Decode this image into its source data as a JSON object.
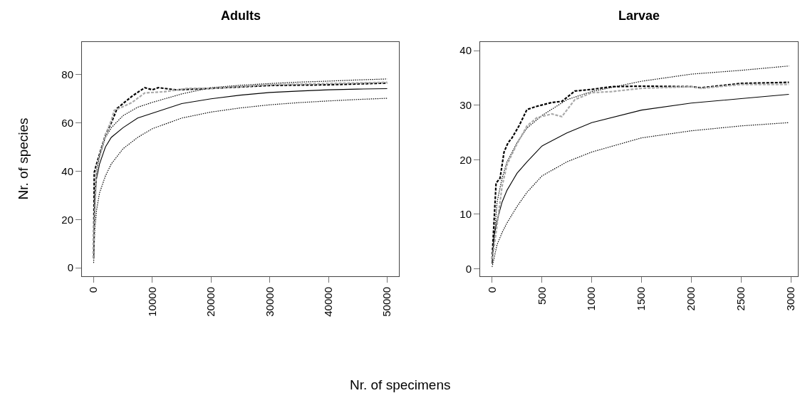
{
  "chart_data": [
    {
      "type": "line",
      "title": "Adults",
      "ylabel": "Nr. of species",
      "xlim": [
        -2000,
        52000
      ],
      "xticks": [
        0,
        10000,
        20000,
        30000,
        40000,
        50000
      ],
      "ylim": [
        -3.5,
        93.5
      ],
      "yticks": [
        0,
        20,
        40,
        60,
        80
      ],
      "marker": "none",
      "series": [
        {
          "color": "#000000",
          "line_style": "solid",
          "x": [
            0,
            200,
            500,
            1000,
            2000,
            3000,
            5000,
            7500,
            10000,
            15000,
            20000,
            25000,
            30000,
            35000,
            40000,
            45000,
            50000
          ],
          "values": [
            4,
            28,
            37,
            43,
            50,
            54,
            58,
            62,
            64,
            68,
            70,
            71.5,
            72.6,
            73.2,
            73.7,
            74,
            74.2
          ]
        },
        {
          "color": "#000000",
          "line_style": "dotted",
          "x": [
            0,
            200,
            500,
            1000,
            2000,
            3000,
            5000,
            7500,
            10000,
            15000,
            20000,
            25000,
            30000,
            35000,
            40000,
            45000,
            50000
          ],
          "values": [
            6,
            32,
            40,
            46,
            54,
            58,
            63,
            66.5,
            68.5,
            72,
            74.6,
            75.6,
            76.3,
            76.9,
            77.3,
            77.8,
            78.2
          ]
        },
        {
          "color": "#000000",
          "line_style": "dotted",
          "x": [
            0,
            200,
            500,
            1000,
            2000,
            3000,
            5000,
            7500,
            10000,
            15000,
            20000,
            25000,
            30000,
            35000,
            40000,
            45000,
            50000
          ],
          "values": [
            2,
            16,
            24,
            31,
            38,
            43,
            49.3,
            54,
            57.6,
            62,
            64.5,
            66.2,
            67.5,
            68.4,
            69.1,
            69.7,
            70.2
          ]
        },
        {
          "color": "#000000",
          "line_style": "dashed",
          "x": [
            0,
            100,
            500,
            2000,
            3000,
            4000,
            5000,
            6500,
            8700,
            10000,
            11000,
            14000,
            20000,
            30000,
            40000,
            50000
          ],
          "values": [
            4,
            39.5,
            43,
            55,
            60,
            66,
            68,
            71,
            74.6,
            73.7,
            74.6,
            73.7,
            74.3,
            75.5,
            75.8,
            76.5
          ]
        },
        {
          "color": "#a9a9a9",
          "line_style": "dashed",
          "x": [
            0,
            100,
            500,
            2000,
            3000,
            3500,
            4500,
            6500,
            8700,
            12000,
            16000,
            20000,
            30000,
            40000,
            50000
          ],
          "values": [
            4,
            17.7,
            41.3,
            55,
            61,
            65.2,
            66.2,
            68.4,
            72.4,
            72.9,
            74.3,
            74.3,
            75.8,
            76.3,
            76.8
          ]
        }
      ]
    },
    {
      "type": "line",
      "title": "Larvae",
      "xlabel": "Nr. of specimens",
      "xlim": [
        -120,
        3070
      ],
      "xticks": [
        0,
        500,
        1000,
        1500,
        2000,
        2500,
        3000
      ],
      "ylim": [
        -1.4,
        41.6
      ],
      "yticks": [
        0,
        10,
        20,
        30,
        40
      ],
      "marker": "none",
      "series": [
        {
          "color": "#000000",
          "line_style": "solid",
          "x": [
            0,
            20,
            50,
            100,
            150,
            250,
            350,
            500,
            750,
            1000,
            1500,
            2000,
            2500,
            2980
          ],
          "values": [
            1,
            6,
            8.8,
            12.2,
            14.4,
            17.5,
            19.6,
            22.5,
            24.9,
            26.8,
            29.1,
            30.4,
            31.2,
            32.0
          ]
        },
        {
          "color": "#000000",
          "line_style": "dotted",
          "x": [
            0,
            50,
            100,
            150,
            250,
            350,
            500,
            750,
            1000,
            1500,
            2000,
            2500,
            2980
          ],
          "values": [
            0.9,
            12.2,
            16.6,
            19.6,
            23.1,
            25.8,
            28.1,
            31,
            32.5,
            34.4,
            35.7,
            36.4,
            37.2
          ]
        },
        {
          "color": "#000000",
          "line_style": "dotted",
          "x": [
            0,
            50,
            100,
            150,
            250,
            350,
            500,
            750,
            1000,
            1500,
            2000,
            2500,
            2980
          ],
          "values": [
            0.3,
            4.4,
            6.6,
            8.4,
            11.4,
            14.0,
            17.0,
            19.6,
            21.4,
            24.0,
            25.3,
            26.2,
            26.8
          ]
        },
        {
          "color": "#000000",
          "line_style": "dashed",
          "x": [
            0,
            20,
            40,
            80,
            120,
            160,
            200,
            270,
            350,
            450,
            600,
            700,
            830,
            1000,
            1200,
            1500,
            2000,
            2100,
            2500,
            2980
          ],
          "values": [
            1.8,
            8.8,
            15.7,
            16.6,
            21.4,
            23.1,
            24.0,
            26.2,
            29.2,
            29.8,
            30.5,
            30.7,
            32.6,
            32.9,
            33.4,
            33.5,
            33.4,
            33.2,
            34.0,
            34.2
          ]
        },
        {
          "color": "#a9a9a9",
          "line_style": "dashed",
          "x": [
            0,
            20,
            50,
            100,
            150,
            250,
            350,
            450,
            600,
            700,
            830,
            1000,
            1200,
            1500,
            2000,
            2100,
            2500,
            2980
          ],
          "values": [
            1.8,
            4,
            8,
            15.1,
            19.1,
            22.9,
            26.2,
            27.7,
            28.4,
            27.9,
            31.0,
            32.3,
            32.5,
            33.1,
            33.4,
            33.1,
            33.8,
            33.8
          ]
        }
      ]
    }
  ]
}
